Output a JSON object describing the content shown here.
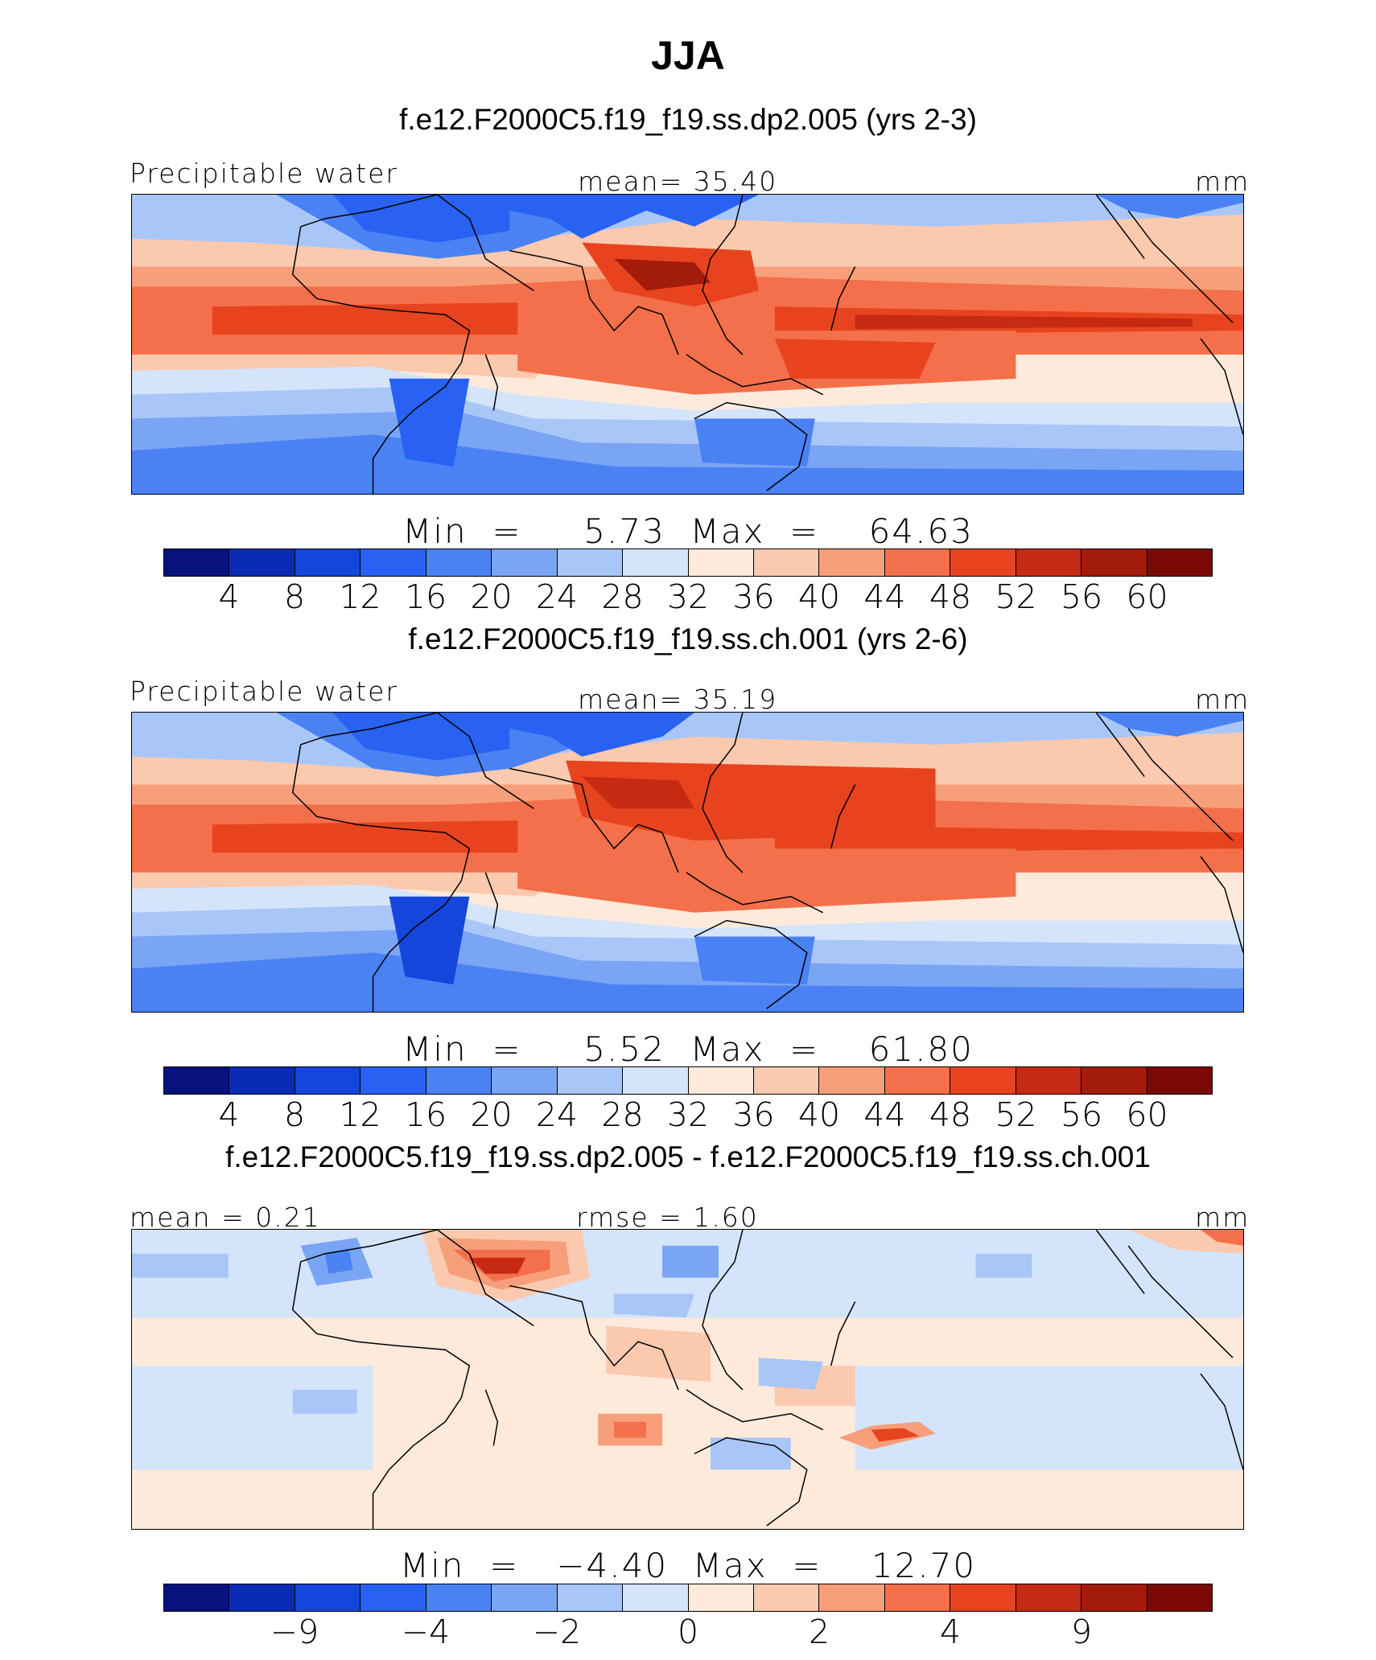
{
  "title": "JJA",
  "colors": [
    "#08127d",
    "#0a2bb4",
    "#1446dc",
    "#2862f2",
    "#4a82f4",
    "#7aa4f4",
    "#a9c6f8",
    "#d4e4fb",
    "#fdeadb",
    "#fbc9ae",
    "#f79f7a",
    "#f3704a",
    "#e8431f",
    "#c72a12",
    "#a31b0b",
    "#7b0a05"
  ],
  "chart_data": [
    {
      "type": "heatmap",
      "title": "f.e12.F2000C5.f19_f19.ss.dp2.005 (yrs 2-3)",
      "variable": "Precipitable water",
      "stat_left": "",
      "stat_center": "mean=   35.40",
      "units": "mm",
      "min": 5.73,
      "max": 64.63,
      "minmax_text": "Min  =     5.73  Max  =    64.63",
      "colorbar_ticks": [
        "4",
        "8",
        "12",
        "16",
        "20",
        "24",
        "28",
        "32",
        "36",
        "40",
        "44",
        "48",
        "52",
        "56",
        "60"
      ]
    },
    {
      "type": "heatmap",
      "title": "f.e12.F2000C5.f19_f19.ss.ch.001 (yrs 2-6)",
      "variable": "Precipitable water",
      "stat_left": "",
      "stat_center": "mean=   35.19",
      "units": "mm",
      "min": 5.52,
      "max": 61.8,
      "minmax_text": "Min  =     5.52  Max  =    61.80",
      "colorbar_ticks": [
        "4",
        "8",
        "12",
        "16",
        "20",
        "24",
        "28",
        "32",
        "36",
        "40",
        "44",
        "48",
        "52",
        "56",
        "60"
      ]
    },
    {
      "type": "heatmap",
      "title": "f.e12.F2000C5.f19_f19.ss.dp2.005 - f.e12.F2000C5.f19_f19.ss.ch.001",
      "variable": "",
      "stat_left": "mean =    0.21",
      "stat_center": "rmse  =    1.60",
      "units": "mm",
      "min": -4.4,
      "max": 12.7,
      "minmax_text": "Min  =   −4.40  Max  =    12.70",
      "colorbar_ticks": [
        "−9",
        "−4",
        "−2",
        "0",
        "2",
        "4",
        "9"
      ]
    }
  ]
}
